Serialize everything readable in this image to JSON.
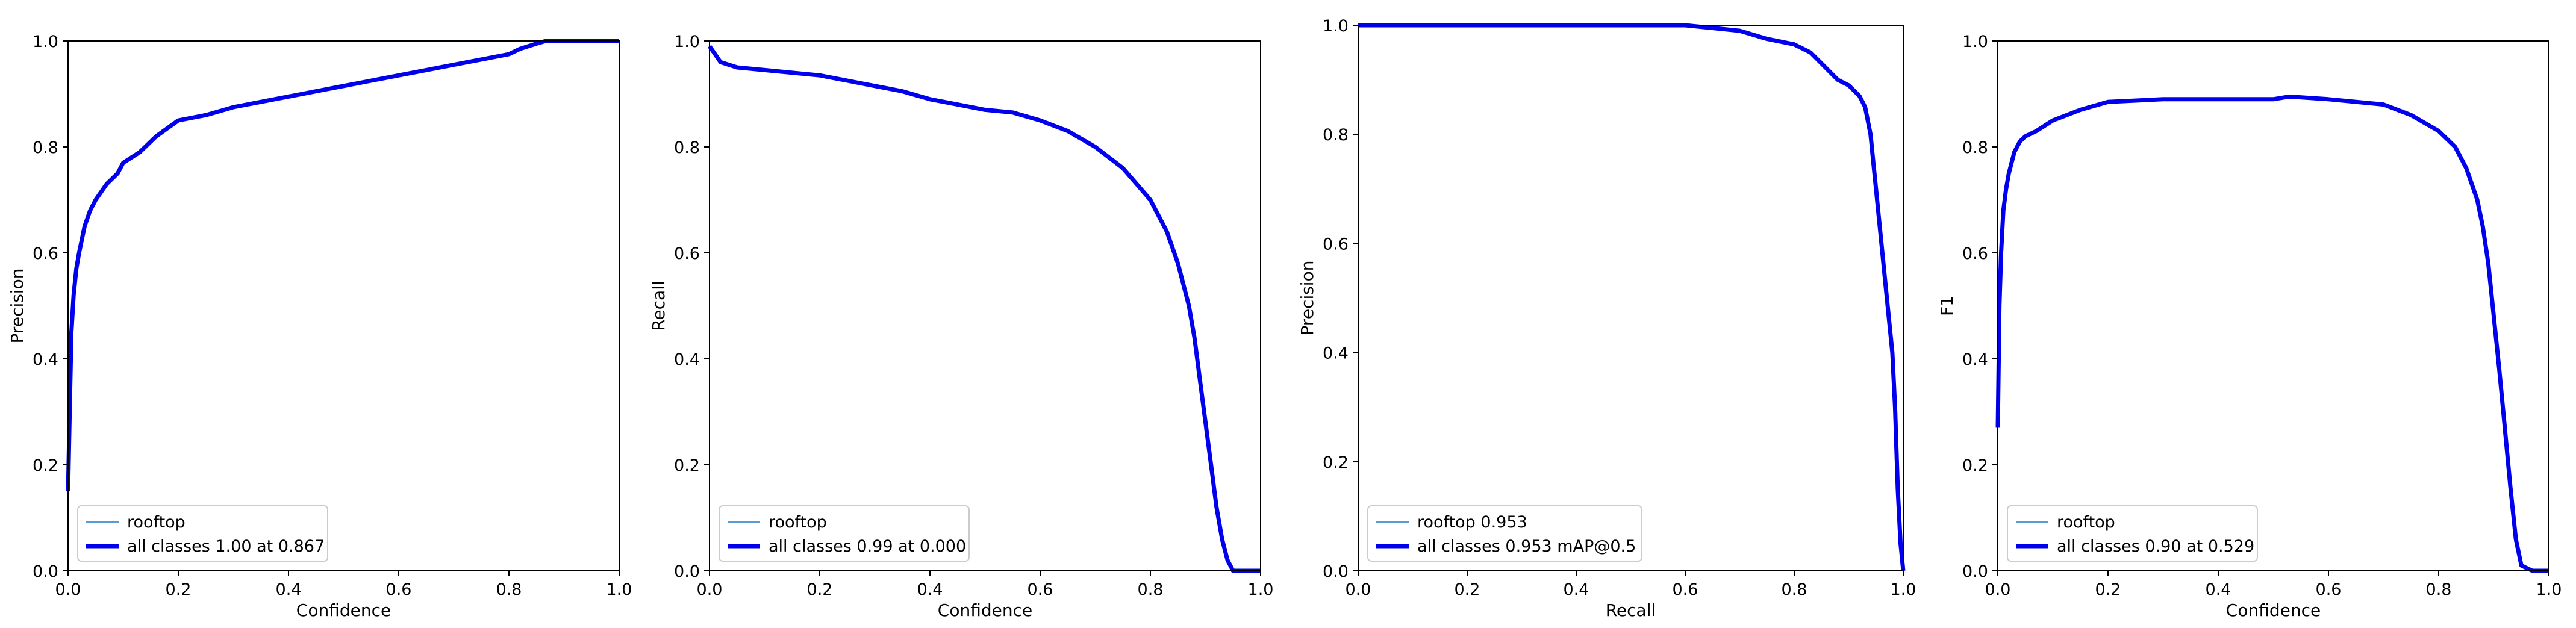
{
  "colors": {
    "rooftop": "#5b9bd5",
    "all_classes": "#0000ee",
    "axes": "#000000",
    "legend_border": "#cccccc"
  },
  "chart_data": [
    {
      "type": "line",
      "title": "",
      "xlabel": "Confidence",
      "ylabel": "Precision",
      "xlim": [
        0,
        1
      ],
      "ylim": [
        0,
        1
      ],
      "xticks": [
        "0.0",
        "0.2",
        "0.4",
        "0.6",
        "0.8",
        "1.0"
      ],
      "yticks": [
        "0.0",
        "0.2",
        "0.4",
        "0.6",
        "0.8",
        "1.0"
      ],
      "grid": false,
      "legend_position": "lower-left",
      "series": [
        {
          "name": "rooftop",
          "thin": true,
          "x": [
            0.0,
            0.003,
            0.006,
            0.01,
            0.015,
            0.02,
            0.03,
            0.04,
            0.05,
            0.07,
            0.09,
            0.1,
            0.13,
            0.16,
            0.2,
            0.25,
            0.3,
            0.35,
            0.4,
            0.45,
            0.5,
            0.55,
            0.6,
            0.65,
            0.7,
            0.75,
            0.8,
            0.82,
            0.85,
            0.867,
            0.9,
            0.95,
            1.0
          ],
          "y": [
            0.15,
            0.3,
            0.45,
            0.52,
            0.57,
            0.6,
            0.65,
            0.68,
            0.7,
            0.73,
            0.75,
            0.77,
            0.79,
            0.82,
            0.85,
            0.86,
            0.875,
            0.885,
            0.895,
            0.905,
            0.915,
            0.925,
            0.935,
            0.945,
            0.955,
            0.965,
            0.975,
            0.985,
            0.995,
            1.0,
            1.0,
            1.0,
            1.0
          ]
        },
        {
          "name": "all classes 1.00 at 0.867",
          "thin": false,
          "x": [
            0.0,
            0.003,
            0.006,
            0.01,
            0.015,
            0.02,
            0.03,
            0.04,
            0.05,
            0.07,
            0.09,
            0.1,
            0.13,
            0.16,
            0.2,
            0.25,
            0.3,
            0.35,
            0.4,
            0.45,
            0.5,
            0.55,
            0.6,
            0.65,
            0.7,
            0.75,
            0.8,
            0.82,
            0.85,
            0.867,
            0.9,
            0.95,
            1.0
          ],
          "y": [
            0.15,
            0.3,
            0.45,
            0.52,
            0.57,
            0.6,
            0.65,
            0.68,
            0.7,
            0.73,
            0.75,
            0.77,
            0.79,
            0.82,
            0.85,
            0.86,
            0.875,
            0.885,
            0.895,
            0.905,
            0.915,
            0.925,
            0.935,
            0.945,
            0.955,
            0.965,
            0.975,
            0.985,
            0.995,
            1.0,
            1.0,
            1.0,
            1.0
          ]
        }
      ]
    },
    {
      "type": "line",
      "title": "",
      "xlabel": "Confidence",
      "ylabel": "Recall",
      "xlim": [
        0,
        1
      ],
      "ylim": [
        0,
        1
      ],
      "xticks": [
        "0.0",
        "0.2",
        "0.4",
        "0.6",
        "0.8",
        "1.0"
      ],
      "yticks": [
        "0.0",
        "0.2",
        "0.4",
        "0.6",
        "0.8",
        "1.0"
      ],
      "grid": false,
      "legend_position": "lower-left",
      "series": [
        {
          "name": "rooftop",
          "thin": true,
          "x": [
            0.0,
            0.01,
            0.02,
            0.05,
            0.1,
            0.15,
            0.2,
            0.25,
            0.3,
            0.35,
            0.4,
            0.45,
            0.5,
            0.55,
            0.6,
            0.65,
            0.7,
            0.75,
            0.8,
            0.83,
            0.85,
            0.87,
            0.88,
            0.89,
            0.9,
            0.91,
            0.92,
            0.93,
            0.94,
            0.95,
            0.96,
            0.97,
            1.0
          ],
          "y": [
            0.99,
            0.975,
            0.96,
            0.95,
            0.945,
            0.94,
            0.935,
            0.925,
            0.915,
            0.905,
            0.89,
            0.88,
            0.87,
            0.865,
            0.85,
            0.83,
            0.8,
            0.76,
            0.7,
            0.64,
            0.58,
            0.5,
            0.44,
            0.36,
            0.28,
            0.2,
            0.12,
            0.06,
            0.02,
            0.0,
            0.0,
            0.0,
            0.0
          ]
        },
        {
          "name": "all classes 0.99 at 0.000",
          "thin": false,
          "x": [
            0.0,
            0.01,
            0.02,
            0.05,
            0.1,
            0.15,
            0.2,
            0.25,
            0.3,
            0.35,
            0.4,
            0.45,
            0.5,
            0.55,
            0.6,
            0.65,
            0.7,
            0.75,
            0.8,
            0.83,
            0.85,
            0.87,
            0.88,
            0.89,
            0.9,
            0.91,
            0.92,
            0.93,
            0.94,
            0.95,
            0.96,
            0.97,
            1.0
          ],
          "y": [
            0.99,
            0.975,
            0.96,
            0.95,
            0.945,
            0.94,
            0.935,
            0.925,
            0.915,
            0.905,
            0.89,
            0.88,
            0.87,
            0.865,
            0.85,
            0.83,
            0.8,
            0.76,
            0.7,
            0.64,
            0.58,
            0.5,
            0.44,
            0.36,
            0.28,
            0.2,
            0.12,
            0.06,
            0.02,
            0.0,
            0.0,
            0.0,
            0.0
          ]
        }
      ]
    },
    {
      "type": "line",
      "title": "",
      "xlabel": "Recall",
      "ylabel": "Precision",
      "xlim": [
        0,
        1
      ],
      "ylim": [
        0,
        1
      ],
      "xticks": [
        "0.0",
        "0.2",
        "0.4",
        "0.6",
        "0.8",
        "1.0"
      ],
      "yticks": [
        "0.0",
        "0.2",
        "0.4",
        "0.6",
        "0.8",
        "1.0"
      ],
      "grid": false,
      "legend_position": "lower-left",
      "series": [
        {
          "name": "rooftop 0.953",
          "thin": true,
          "x": [
            0.0,
            0.1,
            0.2,
            0.3,
            0.4,
            0.5,
            0.6,
            0.65,
            0.7,
            0.75,
            0.8,
            0.83,
            0.85,
            0.87,
            0.88,
            0.9,
            0.92,
            0.93,
            0.94,
            0.945,
            0.95,
            0.955,
            0.96,
            0.97,
            0.98,
            0.985,
            0.99,
            0.995,
            1.0
          ],
          "y": [
            1.0,
            1.0,
            1.0,
            1.0,
            1.0,
            1.0,
            1.0,
            0.995,
            0.99,
            0.975,
            0.965,
            0.95,
            0.93,
            0.91,
            0.9,
            0.89,
            0.87,
            0.85,
            0.8,
            0.75,
            0.7,
            0.65,
            0.6,
            0.5,
            0.4,
            0.3,
            0.15,
            0.05,
            0.0
          ]
        },
        {
          "name": "all classes 0.953 mAP@0.5",
          "thin": false,
          "x": [
            0.0,
            0.1,
            0.2,
            0.3,
            0.4,
            0.5,
            0.6,
            0.65,
            0.7,
            0.75,
            0.8,
            0.83,
            0.85,
            0.87,
            0.88,
            0.9,
            0.92,
            0.93,
            0.94,
            0.945,
            0.95,
            0.955,
            0.96,
            0.97,
            0.98,
            0.985,
            0.99,
            0.995,
            1.0
          ],
          "y": [
            1.0,
            1.0,
            1.0,
            1.0,
            1.0,
            1.0,
            1.0,
            0.995,
            0.99,
            0.975,
            0.965,
            0.95,
            0.93,
            0.91,
            0.9,
            0.89,
            0.87,
            0.85,
            0.8,
            0.75,
            0.7,
            0.65,
            0.6,
            0.5,
            0.4,
            0.3,
            0.15,
            0.05,
            0.0
          ]
        }
      ]
    },
    {
      "type": "line",
      "title": "",
      "xlabel": "Confidence",
      "ylabel": "F1",
      "xlim": [
        0,
        1
      ],
      "ylim": [
        0,
        1
      ],
      "xticks": [
        "0.0",
        "0.2",
        "0.4",
        "0.6",
        "0.8",
        "1.0"
      ],
      "yticks": [
        "0.0",
        "0.2",
        "0.4",
        "0.6",
        "0.8",
        "1.0"
      ],
      "grid": false,
      "legend_position": "lower-left",
      "series": [
        {
          "name": "rooftop",
          "thin": true,
          "x": [
            0.0,
            0.003,
            0.006,
            0.01,
            0.015,
            0.02,
            0.03,
            0.04,
            0.05,
            0.07,
            0.1,
            0.15,
            0.2,
            0.3,
            0.4,
            0.5,
            0.529,
            0.6,
            0.7,
            0.75,
            0.8,
            0.83,
            0.85,
            0.87,
            0.88,
            0.89,
            0.9,
            0.91,
            0.92,
            0.93,
            0.94,
            0.95,
            0.97,
            1.0
          ],
          "y": [
            0.27,
            0.5,
            0.6,
            0.68,
            0.72,
            0.75,
            0.79,
            0.81,
            0.82,
            0.83,
            0.85,
            0.87,
            0.885,
            0.89,
            0.89,
            0.89,
            0.895,
            0.89,
            0.88,
            0.86,
            0.83,
            0.8,
            0.76,
            0.7,
            0.65,
            0.58,
            0.48,
            0.38,
            0.27,
            0.16,
            0.06,
            0.01,
            0.0,
            0.0
          ]
        },
        {
          "name": "all classes 0.90 at 0.529",
          "thin": false,
          "x": [
            0.0,
            0.003,
            0.006,
            0.01,
            0.015,
            0.02,
            0.03,
            0.04,
            0.05,
            0.07,
            0.1,
            0.15,
            0.2,
            0.3,
            0.4,
            0.5,
            0.529,
            0.6,
            0.7,
            0.75,
            0.8,
            0.83,
            0.85,
            0.87,
            0.88,
            0.89,
            0.9,
            0.91,
            0.92,
            0.93,
            0.94,
            0.95,
            0.97,
            1.0
          ],
          "y": [
            0.27,
            0.5,
            0.6,
            0.68,
            0.72,
            0.75,
            0.79,
            0.81,
            0.82,
            0.83,
            0.85,
            0.87,
            0.885,
            0.89,
            0.89,
            0.89,
            0.895,
            0.89,
            0.88,
            0.86,
            0.83,
            0.8,
            0.76,
            0.7,
            0.65,
            0.58,
            0.48,
            0.38,
            0.27,
            0.16,
            0.06,
            0.01,
            0.0,
            0.0
          ]
        }
      ]
    }
  ]
}
